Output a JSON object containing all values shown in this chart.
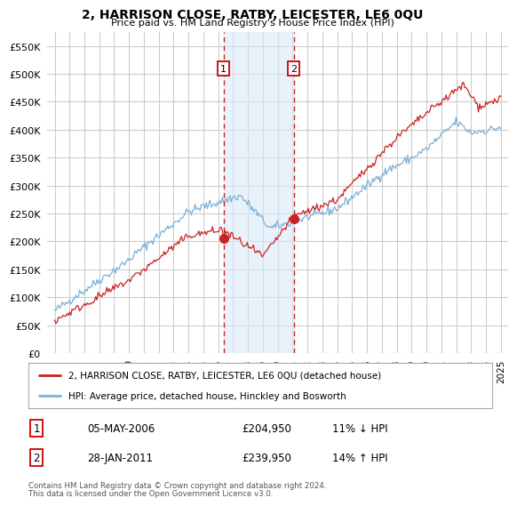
{
  "title": "2, HARRISON CLOSE, RATBY, LEICESTER, LE6 0QU",
  "subtitle": "Price paid vs. HM Land Registry's House Price Index (HPI)",
  "ylabel_ticks": [
    0,
    50000,
    100000,
    150000,
    200000,
    250000,
    300000,
    350000,
    400000,
    450000,
    500000,
    550000
  ],
  "ylim": [
    0,
    575000
  ],
  "xlim_start": 1994.5,
  "xlim_end": 2025.5,
  "transaction1": {
    "date_num": 2006.35,
    "price": 204950,
    "label": "1"
  },
  "transaction2": {
    "date_num": 2011.08,
    "price": 239950,
    "label": "2"
  },
  "shade_color": "#daeaf8",
  "shade_alpha": 0.6,
  "vline_color": "#cc2222",
  "vline_style": "--",
  "marker_box_color": "#cc0000",
  "legend1_label": "2, HARRISON CLOSE, RATBY, LEICESTER, LE6 0QU (detached house)",
  "legend2_label": "HPI: Average price, detached house, Hinckley and Bosworth",
  "red_line_color": "#cc2222",
  "blue_line_color": "#7ab0d8",
  "footer1": "Contains HM Land Registry data © Crown copyright and database right 2024.",
  "footer2": "This data is licensed under the Open Government Licence v3.0.",
  "table_row1": [
    "1",
    "05-MAY-2006",
    "£204,950",
    "11% ↓ HPI"
  ],
  "table_row2": [
    "2",
    "28-JAN-2011",
    "£239,950",
    "14% ↑ HPI"
  ],
  "background_color": "#ffffff",
  "grid_color": "#cccccc"
}
